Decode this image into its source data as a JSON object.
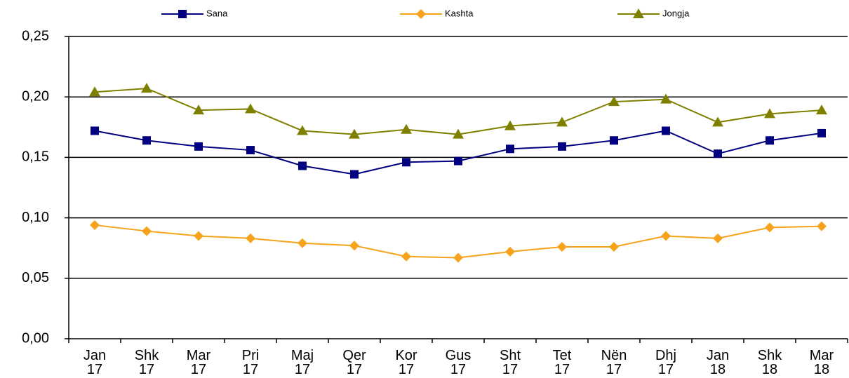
{
  "chart_data": {
    "type": "line",
    "categories": [
      "Jan 17",
      "Shk 17",
      "Mar 17",
      "Pri 17",
      "Maj 17",
      "Qer 17",
      "Kor 17",
      "Gus 17",
      "Sht 17",
      "Tet 17",
      "Nën 17",
      "Dhj 17",
      "Jan 18",
      "Shk 18",
      "Mar 18"
    ],
    "series": [
      {
        "name": "Sana",
        "color": "#000080",
        "marker": "square",
        "values": [
          0.172,
          0.164,
          0.159,
          0.156,
          0.143,
          0.136,
          0.146,
          0.147,
          0.157,
          0.159,
          0.164,
          0.172,
          0.153,
          0.164,
          0.17
        ]
      },
      {
        "name": "Kashta",
        "color": "#f7a21b",
        "marker": "diamond",
        "values": [
          0.094,
          0.089,
          0.085,
          0.083,
          0.079,
          0.077,
          0.068,
          0.067,
          0.072,
          0.076,
          0.076,
          0.085,
          0.083,
          0.092,
          0.093
        ]
      },
      {
        "name": "Jongja",
        "color": "#808000",
        "marker": "triangle",
        "values": [
          0.204,
          0.207,
          0.189,
          0.19,
          0.172,
          0.169,
          0.173,
          0.169,
          0.176,
          0.179,
          0.196,
          0.198,
          0.179,
          0.186,
          0.189
        ]
      }
    ],
    "ylim": [
      0,
      0.25
    ],
    "yticks": [
      {
        "value": 0,
        "label": "0,00"
      },
      {
        "value": 0.05,
        "label": "0,05"
      },
      {
        "value": 0.1,
        "label": "0,10"
      },
      {
        "value": 0.15,
        "label": "0,15"
      },
      {
        "value": 0.2,
        "label": "0,20"
      },
      {
        "value": 0.25,
        "label": "0,25"
      }
    ],
    "grid": true,
    "legend": "top"
  }
}
